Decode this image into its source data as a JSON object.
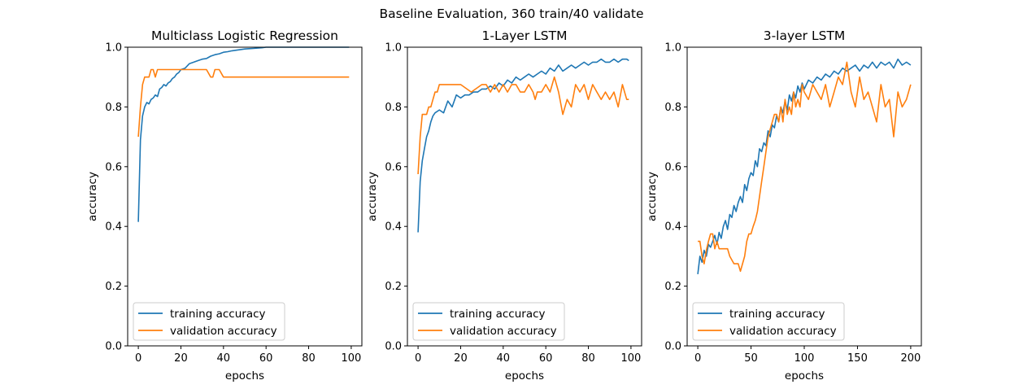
{
  "suptitle": "Baseline Evaluation, 360 train/40 validate",
  "colors": {
    "training": "#1f77b4",
    "validation": "#ff7f0e"
  },
  "chart_data": [
    {
      "type": "line",
      "title": "Multiclass Logistic Regression",
      "xlabel": "epochs",
      "ylabel": "accuracy",
      "xlim": [
        -5,
        105
      ],
      "ylim": [
        0.0,
        1.0
      ],
      "xticks": [
        "0",
        "20",
        "40",
        "60",
        "80",
        "100"
      ],
      "yticks": [
        "0.0",
        "0.2",
        "0.4",
        "0.6",
        "0.8",
        "1.0"
      ],
      "legend": "lower-left",
      "grid": false,
      "series": [
        {
          "name": "training accuracy",
          "x": [
            0,
            1,
            2,
            3,
            4,
            5,
            6,
            7,
            8,
            9,
            10,
            11,
            12,
            13,
            14,
            15,
            16,
            17,
            18,
            19,
            20,
            22,
            24,
            26,
            28,
            30,
            32,
            34,
            36,
            38,
            40,
            42,
            44,
            46,
            48,
            50,
            52,
            54,
            56,
            58,
            60,
            65,
            70,
            75,
            80,
            85,
            90,
            95,
            99
          ],
          "y": [
            0.415,
            0.69,
            0.77,
            0.8,
            0.815,
            0.81,
            0.825,
            0.83,
            0.84,
            0.835,
            0.86,
            0.865,
            0.875,
            0.87,
            0.88,
            0.885,
            0.895,
            0.9,
            0.91,
            0.915,
            0.925,
            0.93,
            0.945,
            0.95,
            0.955,
            0.96,
            0.962,
            0.97,
            0.975,
            0.978,
            0.983,
            0.985,
            0.988,
            0.99,
            0.992,
            0.994,
            0.995,
            0.996,
            0.997,
            0.998,
            1.0,
            1.0,
            1.0,
            1.0,
            1.0,
            1.0,
            1.0,
            1.0,
            1.0
          ]
        },
        {
          "name": "validation accuracy",
          "x": [
            0,
            1,
            2,
            3,
            4,
            5,
            6,
            7,
            8,
            9,
            10,
            12,
            15,
            18,
            20,
            22,
            25,
            28,
            30,
            32,
            34,
            35,
            36,
            38,
            40,
            41,
            42,
            44,
            50,
            60,
            70,
            80,
            90,
            99
          ],
          "y": [
            0.7,
            0.8,
            0.875,
            0.9,
            0.9,
            0.9,
            0.925,
            0.925,
            0.9,
            0.925,
            0.925,
            0.925,
            0.925,
            0.925,
            0.925,
            0.925,
            0.925,
            0.925,
            0.925,
            0.925,
            0.9,
            0.9,
            0.925,
            0.925,
            0.9,
            0.9,
            0.9,
            0.9,
            0.9,
            0.9,
            0.9,
            0.9,
            0.9,
            0.9
          ]
        }
      ]
    },
    {
      "type": "line",
      "title": "1-Layer LSTM",
      "xlabel": "epochs",
      "ylabel": "accuracy",
      "xlim": [
        -5,
        105
      ],
      "ylim": [
        0.0,
        1.0
      ],
      "xticks": [
        "0",
        "20",
        "40",
        "60",
        "80",
        "100"
      ],
      "yticks": [
        "0.0",
        "0.2",
        "0.4",
        "0.6",
        "0.8",
        "1.0"
      ],
      "legend": "lower-left",
      "grid": false,
      "series": [
        {
          "name": "training accuracy",
          "x": [
            0,
            1,
            2,
            3,
            4,
            5,
            6,
            7,
            8,
            10,
            12,
            14,
            16,
            18,
            20,
            22,
            24,
            26,
            28,
            30,
            32,
            34,
            36,
            38,
            40,
            42,
            44,
            46,
            48,
            50,
            52,
            54,
            56,
            58,
            60,
            62,
            64,
            66,
            68,
            70,
            72,
            74,
            76,
            78,
            80,
            82,
            84,
            86,
            88,
            90,
            92,
            94,
            96,
            98,
            99
          ],
          "y": [
            0.38,
            0.55,
            0.62,
            0.66,
            0.7,
            0.72,
            0.75,
            0.77,
            0.78,
            0.79,
            0.78,
            0.82,
            0.8,
            0.84,
            0.83,
            0.84,
            0.84,
            0.85,
            0.85,
            0.86,
            0.86,
            0.87,
            0.86,
            0.88,
            0.87,
            0.89,
            0.88,
            0.9,
            0.89,
            0.9,
            0.91,
            0.9,
            0.91,
            0.92,
            0.91,
            0.93,
            0.92,
            0.94,
            0.92,
            0.93,
            0.94,
            0.93,
            0.94,
            0.95,
            0.94,
            0.95,
            0.95,
            0.96,
            0.95,
            0.95,
            0.96,
            0.95,
            0.96,
            0.96,
            0.955
          ]
        },
        {
          "name": "validation accuracy",
          "x": [
            0,
            1,
            2,
            3,
            4,
            5,
            6,
            7,
            8,
            9,
            10,
            12,
            15,
            20,
            25,
            30,
            32,
            34,
            36,
            38,
            40,
            42,
            44,
            46,
            48,
            50,
            52,
            54,
            55,
            56,
            58,
            60,
            62,
            64,
            66,
            68,
            70,
            72,
            74,
            76,
            78,
            80,
            82,
            84,
            86,
            88,
            90,
            92,
            94,
            96,
            98,
            99
          ],
          "y": [
            0.575,
            0.7,
            0.775,
            0.775,
            0.775,
            0.8,
            0.8,
            0.825,
            0.85,
            0.85,
            0.875,
            0.875,
            0.875,
            0.875,
            0.85,
            0.875,
            0.875,
            0.85,
            0.875,
            0.85,
            0.875,
            0.85,
            0.875,
            0.875,
            0.85,
            0.85,
            0.875,
            0.85,
            0.825,
            0.85,
            0.85,
            0.875,
            0.85,
            0.9,
            0.85,
            0.775,
            0.825,
            0.8,
            0.875,
            0.85,
            0.875,
            0.825,
            0.875,
            0.85,
            0.825,
            0.85,
            0.825,
            0.85,
            0.8,
            0.875,
            0.825,
            0.825
          ]
        }
      ]
    },
    {
      "type": "line",
      "title": "3-layer LSTM",
      "xlabel": "epochs",
      "ylabel": "accuracy",
      "xlim": [
        -10,
        210
      ],
      "ylim": [
        0.0,
        1.0
      ],
      "xticks": [
        "0",
        "50",
        "100",
        "150",
        "200"
      ],
      "yticks": [
        "0.0",
        "0.2",
        "0.4",
        "0.6",
        "0.8",
        "1.0"
      ],
      "legend": "lower-left",
      "grid": false,
      "series": [
        {
          "name": "training accuracy",
          "x": [
            0,
            2,
            4,
            6,
            8,
            10,
            12,
            14,
            16,
            18,
            20,
            22,
            24,
            26,
            28,
            30,
            32,
            34,
            36,
            38,
            40,
            42,
            44,
            46,
            48,
            50,
            52,
            54,
            56,
            58,
            60,
            62,
            64,
            66,
            68,
            70,
            72,
            74,
            76,
            78,
            80,
            82,
            84,
            86,
            88,
            90,
            92,
            94,
            96,
            98,
            100,
            104,
            108,
            112,
            116,
            120,
            124,
            128,
            132,
            136,
            140,
            144,
            148,
            152,
            156,
            160,
            164,
            168,
            172,
            176,
            180,
            184,
            188,
            192,
            196,
            200
          ],
          "y": [
            0.24,
            0.3,
            0.28,
            0.32,
            0.3,
            0.34,
            0.33,
            0.35,
            0.37,
            0.34,
            0.38,
            0.36,
            0.4,
            0.42,
            0.39,
            0.44,
            0.43,
            0.47,
            0.45,
            0.48,
            0.5,
            0.48,
            0.54,
            0.52,
            0.56,
            0.58,
            0.57,
            0.62,
            0.6,
            0.66,
            0.65,
            0.68,
            0.67,
            0.72,
            0.7,
            0.74,
            0.73,
            0.77,
            0.75,
            0.8,
            0.78,
            0.82,
            0.79,
            0.84,
            0.82,
            0.85,
            0.83,
            0.87,
            0.85,
            0.88,
            0.86,
            0.89,
            0.88,
            0.9,
            0.89,
            0.91,
            0.9,
            0.92,
            0.91,
            0.93,
            0.92,
            0.93,
            0.94,
            0.92,
            0.94,
            0.93,
            0.95,
            0.93,
            0.95,
            0.94,
            0.95,
            0.93,
            0.96,
            0.94,
            0.95,
            0.94
          ]
        },
        {
          "name": "validation accuracy",
          "x": [
            0,
            2,
            4,
            6,
            8,
            10,
            12,
            14,
            16,
            18,
            20,
            24,
            28,
            30,
            34,
            38,
            40,
            42,
            44,
            46,
            48,
            50,
            52,
            54,
            56,
            58,
            60,
            62,
            64,
            66,
            68,
            70,
            72,
            74,
            76,
            78,
            80,
            82,
            84,
            86,
            88,
            90,
            92,
            94,
            96,
            98,
            100,
            104,
            108,
            112,
            116,
            120,
            124,
            128,
            132,
            136,
            140,
            144,
            148,
            152,
            156,
            160,
            164,
            168,
            172,
            176,
            180,
            184,
            188,
            192,
            196,
            200
          ],
          "y": [
            0.35,
            0.35,
            0.3,
            0.275,
            0.32,
            0.35,
            0.375,
            0.375,
            0.325,
            0.35,
            0.325,
            0.325,
            0.325,
            0.3,
            0.275,
            0.275,
            0.25,
            0.275,
            0.3,
            0.35,
            0.375,
            0.375,
            0.4,
            0.42,
            0.45,
            0.5,
            0.55,
            0.6,
            0.65,
            0.7,
            0.725,
            0.75,
            0.775,
            0.775,
            0.75,
            0.8,
            0.75,
            0.825,
            0.775,
            0.8,
            0.775,
            0.85,
            0.8,
            0.825,
            0.8,
            0.875,
            0.85,
            0.825,
            0.875,
            0.85,
            0.825,
            0.875,
            0.8,
            0.85,
            0.9,
            0.875,
            0.95,
            0.85,
            0.8,
            0.9,
            0.825,
            0.85,
            0.8,
            0.75,
            0.875,
            0.8,
            0.825,
            0.7,
            0.85,
            0.8,
            0.825,
            0.875
          ]
        }
      ]
    }
  ]
}
